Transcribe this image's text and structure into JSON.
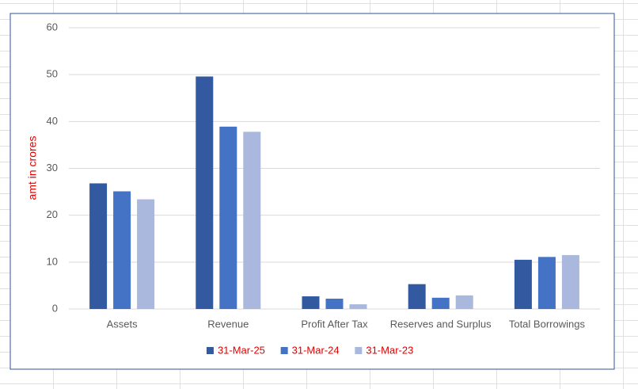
{
  "chart_data": {
    "type": "bar",
    "y_label": "amt in crores",
    "categories": [
      "Assets",
      "Revenue",
      "Profit After Tax",
      "Reserves and Surplus",
      "Total Borrowings"
    ],
    "series": [
      {
        "name": "31-Mar-25",
        "color": "#335aa1",
        "values": [
          26.8,
          49.6,
          2.7,
          5.3,
          10.5
        ]
      },
      {
        "name": "31-Mar-24",
        "color": "#4472c4",
        "values": [
          25.1,
          38.9,
          2.2,
          2.4,
          11.1
        ]
      },
      {
        "name": "31-Mar-23",
        "color": "#a9b8dc",
        "values": [
          23.4,
          37.8,
          1.0,
          2.9,
          11.5
        ]
      }
    ],
    "ylim": [
      0,
      60
    ],
    "yticks": [
      0,
      10,
      20,
      30,
      40,
      50,
      60
    ],
    "grid": true,
    "legend": "bottom"
  }
}
